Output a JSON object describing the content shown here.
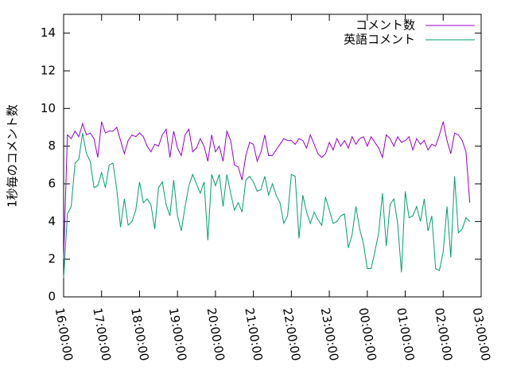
{
  "chart_data": {
    "type": "line",
    "ylabel": "1秒毎のコメント数",
    "x": [
      "16:00:00",
      "16:06:00",
      "16:12:00",
      "16:18:00",
      "16:24:00",
      "16:30:00",
      "16:36:00",
      "16:42:00",
      "16:48:00",
      "16:54:00",
      "17:00:00",
      "17:06:00",
      "17:12:00",
      "17:18:00",
      "17:24:00",
      "17:30:00",
      "17:36:00",
      "17:42:00",
      "17:48:00",
      "17:54:00",
      "18:00:00",
      "18:06:00",
      "18:12:00",
      "18:18:00",
      "18:24:00",
      "18:30:00",
      "18:36:00",
      "18:42:00",
      "18:48:00",
      "18:54:00",
      "19:00:00",
      "19:06:00",
      "19:12:00",
      "19:18:00",
      "19:24:00",
      "19:30:00",
      "19:36:00",
      "19:42:00",
      "19:48:00",
      "19:54:00",
      "20:00:00",
      "20:06:00",
      "20:12:00",
      "20:18:00",
      "20:24:00",
      "20:30:00",
      "20:36:00",
      "20:42:00",
      "20:48:00",
      "20:54:00",
      "21:00:00",
      "21:06:00",
      "21:12:00",
      "21:18:00",
      "21:24:00",
      "21:30:00",
      "21:36:00",
      "21:42:00",
      "21:48:00",
      "21:54:00",
      "22:00:00",
      "22:06:00",
      "22:12:00",
      "22:18:00",
      "22:24:00",
      "22:30:00",
      "22:36:00",
      "22:42:00",
      "22:48:00",
      "22:54:00",
      "23:00:00",
      "23:06:00",
      "23:12:00",
      "23:18:00",
      "23:24:00",
      "23:30:00",
      "23:36:00",
      "23:42:00",
      "23:48:00",
      "23:54:00",
      "00:00:00",
      "00:06:00",
      "00:12:00",
      "00:18:00",
      "00:24:00",
      "00:30:00",
      "00:36:00",
      "00:42:00",
      "00:48:00",
      "00:54:00",
      "01:00:00",
      "01:06:00",
      "01:12:00",
      "01:18:00",
      "01:24:00",
      "01:30:00",
      "01:36:00",
      "01:42:00",
      "01:48:00",
      "01:54:00",
      "02:00:00",
      "02:06:00",
      "02:12:00",
      "02:18:00",
      "02:24:00",
      "02:30:00",
      "02:36:00",
      "02:42:00"
    ],
    "series": [
      {
        "name": "コメント数",
        "color": "#9400d3",
        "values": [
          2,
          8.6,
          8.4,
          8.8,
          8.5,
          9.2,
          8.6,
          8.7,
          8.4,
          7.4,
          9.3,
          8.7,
          8.8,
          8.8,
          9.0,
          8.3,
          7.6,
          8.3,
          8.6,
          8.5,
          8.7,
          8.5,
          8.0,
          7.7,
          8.1,
          8.0,
          8.6,
          8.9,
          7.4,
          8.8,
          7.9,
          7.5,
          8.6,
          8.9,
          7.7,
          7.9,
          8.4,
          8.0,
          7.2,
          8.6,
          7.7,
          8.0,
          7.2,
          8.8,
          8.3,
          7.0,
          6.9,
          6.2,
          7.5,
          8.2,
          8.1,
          7.2,
          7.7,
          8.6,
          7.5,
          7.5,
          7.8,
          8.1,
          8.4,
          8.3,
          8.3,
          8.1,
          8.4,
          8.3,
          7.9,
          8.6,
          8.1,
          7.6,
          7.4,
          7.6,
          8.2,
          7.8,
          8.4,
          8.0,
          8.3,
          7.9,
          8.5,
          8.1,
          8.4,
          8.5,
          8.0,
          8.5,
          8.2,
          7.9,
          7.4,
          8.6,
          8.4,
          8.0,
          8.5,
          8.2,
          8.3,
          8.5,
          7.8,
          8.4,
          8.1,
          8.3,
          7.8,
          8.1,
          8.0,
          8.6,
          9.3,
          8.3,
          7.6,
          8.7,
          8.6,
          8.3,
          7.7,
          5.0
        ]
      },
      {
        "name": "英語コメント",
        "color": "#009e73",
        "values": [
          1.0,
          4.4,
          4.8,
          7.1,
          7.3,
          8.7,
          7.6,
          7.2,
          5.8,
          5.9,
          6.6,
          5.8,
          7.0,
          7.1,
          5.7,
          3.7,
          5.2,
          3.8,
          4.0,
          4.6,
          6.1,
          5.0,
          5.2,
          4.9,
          3.6,
          5.8,
          6.1,
          4.9,
          4.3,
          6.2,
          4.3,
          3.5,
          4.8,
          5.9,
          6.5,
          6.0,
          5.5,
          6.1,
          3.0,
          6.5,
          5.9,
          6.5,
          4.8,
          6.5,
          5.5,
          4.6,
          5.0,
          4.5,
          6.2,
          6.4,
          6.1,
          5.6,
          5.7,
          6.4,
          5.4,
          6.0,
          5.4,
          5.0,
          3.9,
          4.3,
          6.5,
          6.4,
          3.1,
          5.4,
          4.5,
          3.9,
          4.5,
          4.1,
          3.8,
          5.3,
          4.6,
          3.9,
          4.0,
          4.3,
          4.4,
          2.6,
          3.3,
          4.8,
          3.6,
          2.8,
          1.5,
          1.5,
          2.4,
          3.4,
          5.5,
          2.7,
          4.9,
          5.2,
          3.9,
          1.3,
          5.6,
          4.2,
          4.3,
          4.8,
          4.0,
          5.2,
          3.5,
          4.3,
          1.5,
          1.4,
          2.4,
          4.8,
          2.1,
          6.4,
          3.4,
          3.6,
          4.2,
          4.0
        ]
      }
    ],
    "xlim": [
      "16:00:00",
      "03:00:00"
    ],
    "xticks": [
      "16:00:00",
      "17:00:00",
      "18:00:00",
      "19:00:00",
      "20:00:00",
      "21:00:00",
      "22:00:00",
      "23:00:00",
      "00:00:00",
      "01:00:00",
      "02:00:00",
      "03:00:00"
    ],
    "ylim": [
      0,
      15
    ],
    "yticks": [
      0,
      2,
      4,
      6,
      8,
      10,
      12,
      14
    ],
    "legend": "top-right"
  }
}
